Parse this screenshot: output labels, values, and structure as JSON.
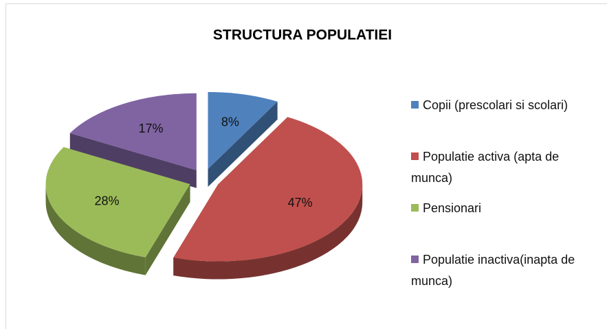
{
  "chart_data": {
    "type": "pie3d",
    "title": "STRUCTURA POPULATIEI",
    "categories": [
      "Copii (prescolari si scolari)",
      "Populatie activa (apta de munca)",
      "Pensionari",
      "Populatie inactiva(inapta de munca)"
    ],
    "values": [
      8,
      47,
      28,
      17
    ],
    "value_labels": [
      "8%",
      "47%",
      "28%",
      "17%"
    ],
    "colors": [
      "#4f81bd",
      "#c0504d",
      "#9bbb59",
      "#8064a2"
    ],
    "legend": "right"
  }
}
